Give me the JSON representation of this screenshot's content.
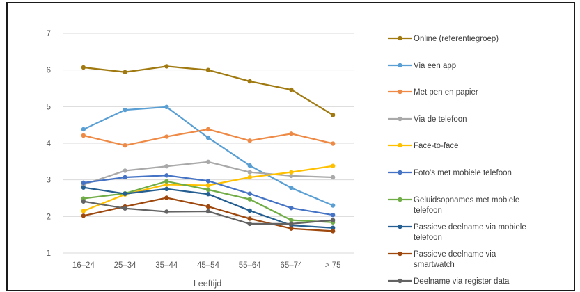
{
  "chart_data": {
    "type": "line",
    "title": "",
    "xlabel": "Leeftijd",
    "ylabel": "",
    "ylim": [
      1,
      7
    ],
    "y_ticks": [
      "1",
      "2",
      "3",
      "4",
      "5",
      "6",
      "7"
    ],
    "grid": "horizontal",
    "legend_position": "right",
    "categories": [
      "16–24",
      "25–34",
      "35–44",
      "45–54",
      "55–64",
      "65–74",
      "> 75"
    ],
    "series": [
      {
        "name": "Online (referentiegroep)",
        "color": "#a07a10",
        "values": [
          6.07,
          5.94,
          6.1,
          6.0,
          5.69,
          5.46,
          4.77
        ]
      },
      {
        "name": "Via een app",
        "color": "#5a9fd4",
        "values": [
          4.38,
          4.91,
          4.99,
          4.15,
          3.39,
          2.78,
          2.3
        ]
      },
      {
        "name": "Met pen en papier",
        "color": "#ee8a45",
        "values": [
          4.21,
          3.94,
          4.18,
          4.38,
          4.07,
          4.26,
          3.99
        ]
      },
      {
        "name": "Via de telefoon",
        "color": "#a9a9a9",
        "values": [
          2.87,
          3.25,
          3.37,
          3.49,
          3.21,
          3.11,
          3.07
        ]
      },
      {
        "name": "Face-to-face",
        "color": "#ffc000",
        "values": [
          2.15,
          2.6,
          2.87,
          2.85,
          3.07,
          3.21,
          3.38
        ]
      },
      {
        "name": "Foto's met mobiele telefoon",
        "color": "#4472c4",
        "values": [
          2.92,
          3.07,
          3.12,
          2.97,
          2.62,
          2.23,
          2.04
        ]
      },
      {
        "name": "Geluidsopnames met mobiele telefoon",
        "color": "#70ad47",
        "values": [
          2.49,
          2.63,
          2.96,
          2.73,
          2.47,
          1.9,
          1.84
        ]
      },
      {
        "name": "Passieve deelname via mobiele telefoon",
        "color": "#255e91",
        "values": [
          2.79,
          2.62,
          2.75,
          2.61,
          2.16,
          1.76,
          1.69
        ]
      },
      {
        "name": "Passieve deelname via smartwatch",
        "color": "#9e480e",
        "values": [
          2.02,
          2.27,
          2.51,
          2.27,
          1.94,
          1.67,
          1.6
        ]
      },
      {
        "name": "Deelname via register data",
        "color": "#636363",
        "values": [
          2.41,
          2.22,
          2.13,
          2.14,
          1.8,
          1.8,
          1.9
        ]
      }
    ]
  }
}
